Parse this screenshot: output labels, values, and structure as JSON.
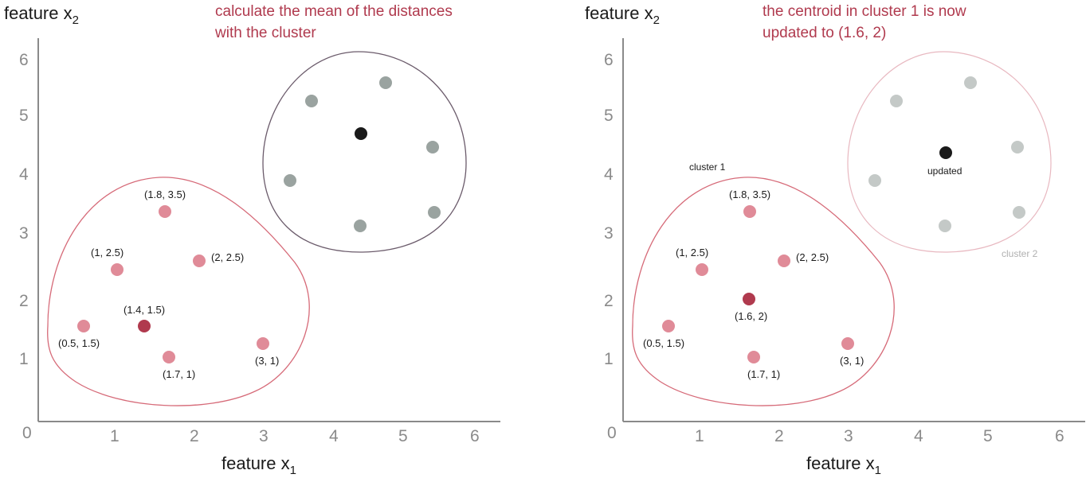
{
  "colors": {
    "cluster1_point": "#e08b98",
    "centroid1": "#b03a4e",
    "cluster2_point": "#9aa3a0",
    "centroid2": "#1a1a1a",
    "caption": "#b03a4e",
    "axis": "#8a8a8a",
    "cluster1_outline": "#d66a78",
    "cluster2_outline_active": "#6b5b6b",
    "cluster2_outline_faded": "#e8b8c0"
  },
  "left_panel": {
    "y_axis_label": "feature x",
    "y_axis_sub": "2",
    "x_axis_label": "feature x",
    "x_axis_sub": "1",
    "caption_line1": "calculate the mean of the distances",
    "caption_line2": "with the cluster",
    "x_ticks": [
      "0",
      "1",
      "2",
      "3",
      "4",
      "5",
      "6"
    ],
    "y_ticks": [
      "1",
      "2",
      "3",
      "4",
      "5",
      "6"
    ],
    "cluster1_points": [
      {
        "x": 1.8,
        "y": 3.5,
        "label": "(1.8, 3.5)"
      },
      {
        "x": 1.0,
        "y": 2.5,
        "label": "(1, 2.5)"
      },
      {
        "x": 2.0,
        "y": 2.5,
        "label": "(2, 2.5)"
      },
      {
        "x": 0.5,
        "y": 1.5,
        "label": "(0.5, 1.5)"
      },
      {
        "x": 1.7,
        "y": 1.0,
        "label": "(1.7, 1)"
      },
      {
        "x": 3.0,
        "y": 1.0,
        "label": "(3, 1)"
      }
    ],
    "centroid1": {
      "x": 1.4,
      "y": 1.5,
      "label": "(1.4, 1.5)"
    }
  },
  "right_panel": {
    "y_axis_label": "feature x",
    "y_axis_sub": "2",
    "x_axis_label": "feature x",
    "x_axis_sub": "1",
    "caption_line1": "the centroid in cluster 1 is now",
    "caption_line2": "updated to  (1.6, 2)",
    "x_ticks": [
      "0",
      "1",
      "2",
      "3",
      "4",
      "5",
      "6"
    ],
    "y_ticks": [
      "1",
      "2",
      "3",
      "4",
      "5",
      "6"
    ],
    "cluster1_label": "cluster 1",
    "cluster2_label": "cluster 2",
    "updated_label": "updated",
    "cluster1_points": [
      {
        "x": 1.8,
        "y": 3.5,
        "label": "(1.8, 3.5)"
      },
      {
        "x": 1.0,
        "y": 2.5,
        "label": "(1, 2.5)"
      },
      {
        "x": 2.0,
        "y": 2.5,
        "label": "(2, 2.5)"
      },
      {
        "x": 0.5,
        "y": 1.5,
        "label": "(0.5, 1.5)"
      },
      {
        "x": 1.7,
        "y": 1.0,
        "label": "(1.7, 1)"
      },
      {
        "x": 3.0,
        "y": 1.0,
        "label": "(3, 1)"
      }
    ],
    "centroid1": {
      "x": 1.6,
      "y": 2.0,
      "label": "(1.6, 2)"
    }
  }
}
